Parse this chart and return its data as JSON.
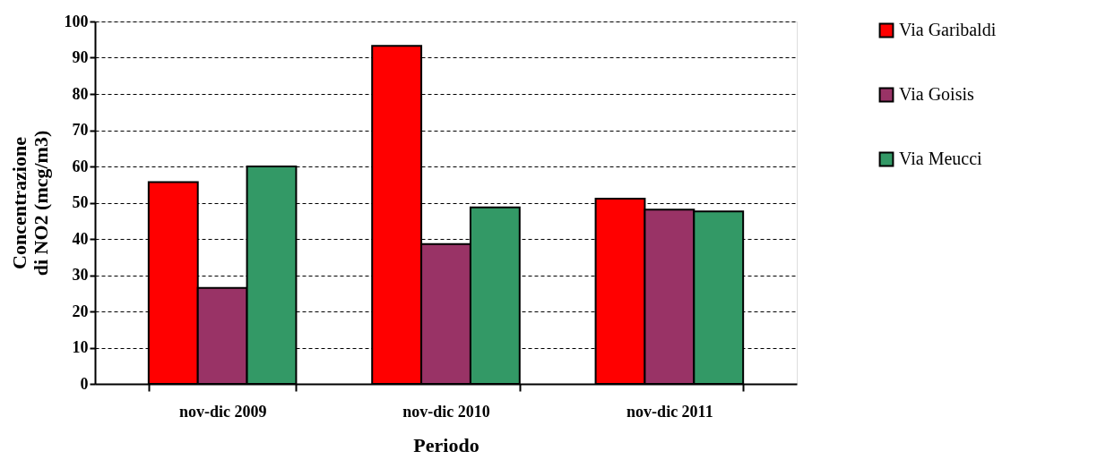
{
  "chart_data": {
    "type": "bar",
    "xlabel": "Periodo",
    "ylabel": "Concentrazione\ndi NO2 (mcg/m3)",
    "categories": [
      "nov-dic 2009",
      "nov-dic 2010",
      "nov-dic 2011"
    ],
    "series": [
      {
        "name": "Via Garibaldi",
        "color": "#ff0000",
        "values": [
          55.7,
          93.3,
          51.1
        ]
      },
      {
        "name": "Via Goisis",
        "color": "#993366",
        "values": [
          26.5,
          38.6,
          48.1
        ]
      },
      {
        "name": "Via Meucci",
        "color": "#339966",
        "values": [
          60.0,
          48.7,
          47.6
        ]
      }
    ],
    "ylim": [
      0,
      100
    ],
    "yticks": [
      0,
      10,
      20,
      30,
      40,
      50,
      60,
      70,
      80,
      90,
      100
    ],
    "grid": "y",
    "legend": "right"
  }
}
